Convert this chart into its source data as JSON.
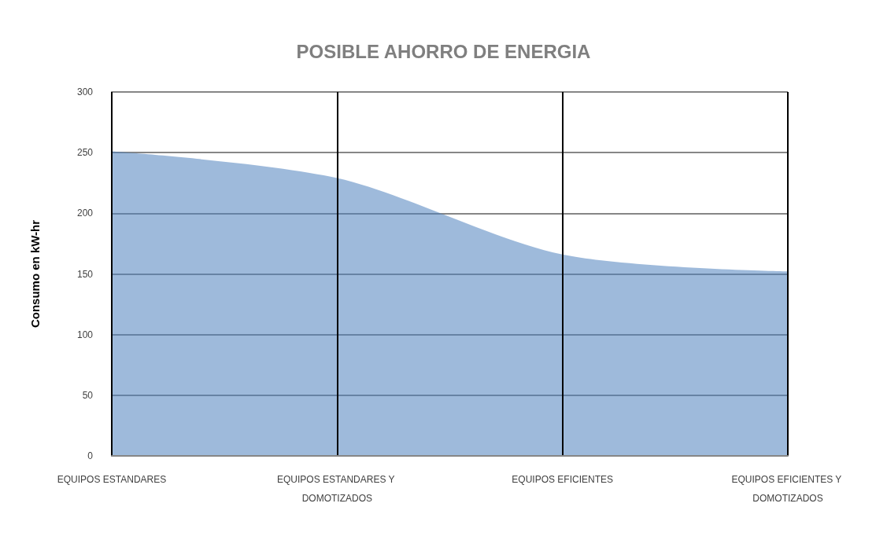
{
  "chart_data": {
    "type": "area",
    "title": "POSIBLE AHORRO DE ENERGIA",
    "ylabel": "Consumo en kW-hr",
    "categories": [
      "EQUIPOS ESTANDARES",
      "EQUIPOS ESTANDARES Y DOMOTIZADOS",
      "EQUIPOS EFICIENTES",
      "EQUIPOS EFICIENTES Y DOMOTIZADOS"
    ],
    "values": [
      251,
      229,
      166,
      152
    ],
    "color": "#4f81bd",
    "ylim": [
      0,
      300
    ],
    "yticks": [
      0,
      50,
      100,
      150,
      200,
      250,
      300
    ],
    "grid": true
  }
}
